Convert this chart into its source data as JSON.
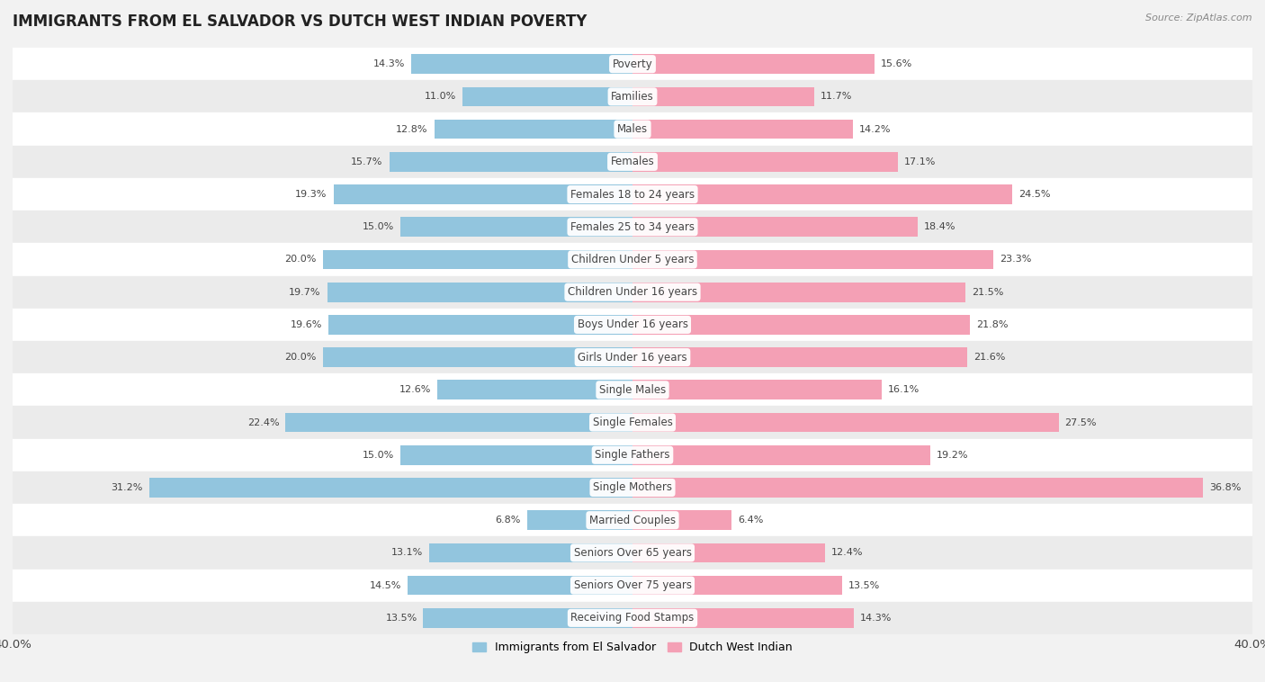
{
  "title": "IMMIGRANTS FROM EL SALVADOR VS DUTCH WEST INDIAN POVERTY",
  "source": "Source: ZipAtlas.com",
  "categories": [
    "Poverty",
    "Families",
    "Males",
    "Females",
    "Females 18 to 24 years",
    "Females 25 to 34 years",
    "Children Under 5 years",
    "Children Under 16 years",
    "Boys Under 16 years",
    "Girls Under 16 years",
    "Single Males",
    "Single Females",
    "Single Fathers",
    "Single Mothers",
    "Married Couples",
    "Seniors Over 65 years",
    "Seniors Over 75 years",
    "Receiving Food Stamps"
  ],
  "left_values": [
    14.3,
    11.0,
    12.8,
    15.7,
    19.3,
    15.0,
    20.0,
    19.7,
    19.6,
    20.0,
    12.6,
    22.4,
    15.0,
    31.2,
    6.8,
    13.1,
    14.5,
    13.5
  ],
  "right_values": [
    15.6,
    11.7,
    14.2,
    17.1,
    24.5,
    18.4,
    23.3,
    21.5,
    21.8,
    21.6,
    16.1,
    27.5,
    19.2,
    36.8,
    6.4,
    12.4,
    13.5,
    14.3
  ],
  "left_color": "#92C5DE",
  "right_color": "#F4A0B5",
  "left_label": "Immigrants from El Salvador",
  "right_label": "Dutch West Indian",
  "xlim": 40.0,
  "bar_height": 0.6,
  "background_color": "#f2f2f2",
  "row_colors": [
    "#ffffff",
    "#ebebeb"
  ],
  "title_fontsize": 12,
  "label_fontsize": 8.5,
  "value_fontsize": 8.0,
  "axis_fontsize": 9.5
}
